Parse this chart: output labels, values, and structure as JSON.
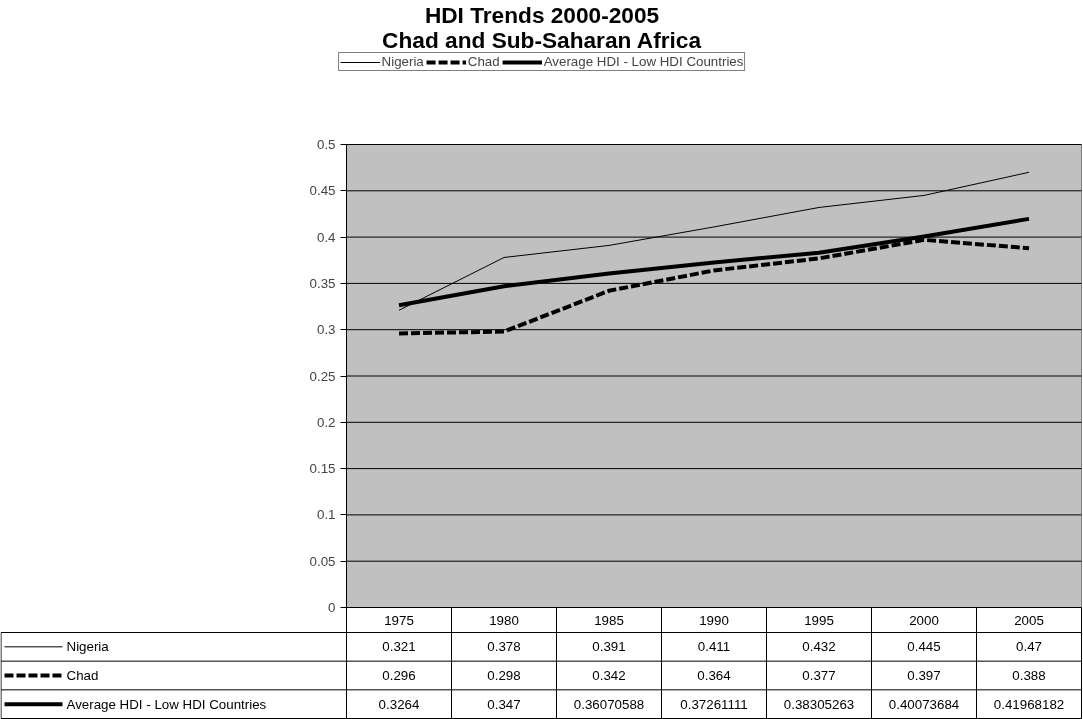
{
  "chart_data": {
    "type": "line",
    "title": "HDI Trends 2000-2005",
    "subtitle": "Chad and Sub-Saharan Africa",
    "categories": [
      "1975",
      "1980",
      "1985",
      "1990",
      "1995",
      "2000",
      "2005"
    ],
    "series": [
      {
        "name": "Nigeria",
        "color": "#000000",
        "line_style": "solid",
        "values": [
          0.321,
          0.378,
          0.391,
          0.411,
          0.432,
          0.445,
          0.47
        ]
      },
      {
        "name": "Chad",
        "color": "#000000",
        "line_style": "dashed",
        "values": [
          0.296,
          0.298,
          0.342,
          0.364,
          0.377,
          0.397,
          0.388
        ]
      },
      {
        "name": "Average HDI - Low HDI Countries",
        "color": "#000000",
        "line_style": "solid",
        "values": [
          0.3264,
          0.347,
          0.36070588,
          0.37261111,
          0.38305263,
          0.40073684,
          0.41968182
        ]
      }
    ],
    "ylim": [
      0,
      0.5
    ],
    "yticks": [
      0,
      0.05,
      0.1,
      0.15,
      0.2,
      0.25,
      0.3,
      0.35,
      0.4,
      0.45,
      0.5
    ],
    "grid": "y",
    "legend": "top",
    "data_labels": true
  }
}
